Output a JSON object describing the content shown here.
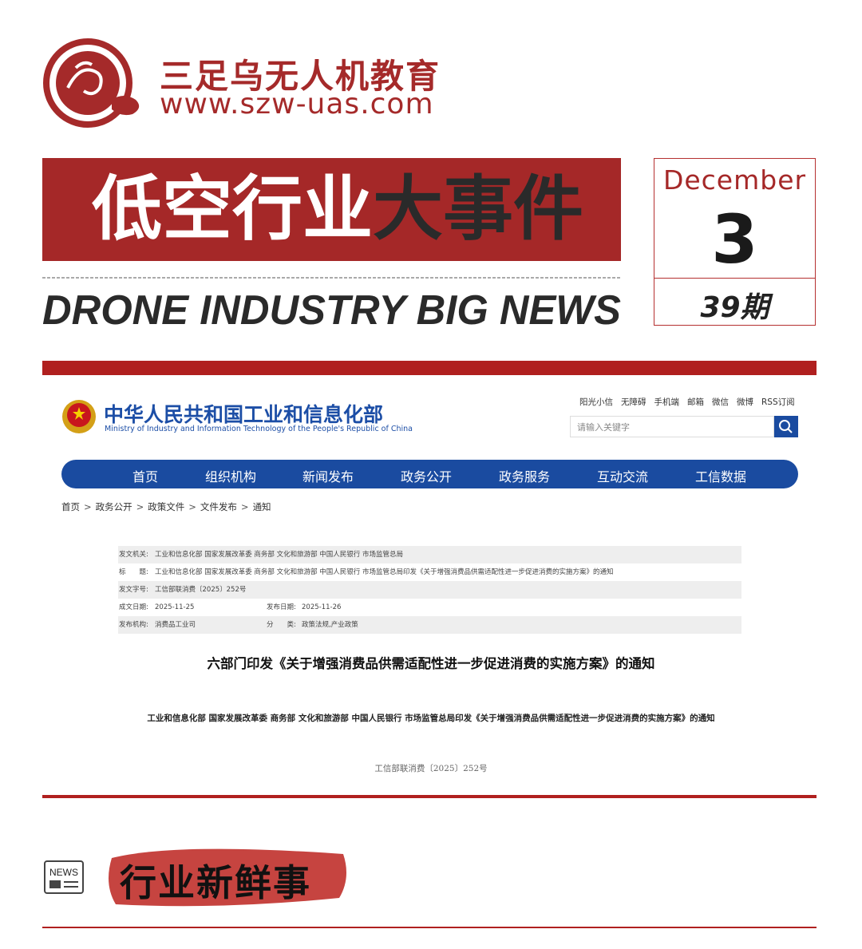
{
  "brand": {
    "name": "三足乌无人机教育",
    "url": "www.szw-uas.com"
  },
  "banner": {
    "title_white": "低空行业",
    "title_dark": "大事件",
    "subtitle": "DRONE INDUSTRY BIG NEWS",
    "month": "December",
    "day": "3",
    "issue": "39期"
  },
  "screenshot": {
    "site_title": "中华人民共和国工业和信息化部",
    "site_subtitle": "Ministry of Industry and Information Technology of the People's Republic of China",
    "top_links": [
      "阳光小信",
      "无障碍",
      "手机端",
      "邮箱",
      "微信",
      "微博",
      "RSS订阅"
    ],
    "search_placeholder": "请输入关键字",
    "nav": [
      "首页",
      "组织机构",
      "新闻发布",
      "政务公开",
      "政务服务",
      "互动交流",
      "工信数据"
    ],
    "breadcrumb_separator": ">",
    "breadcrumb": [
      "首页",
      "政务公开",
      "政策文件",
      "文件发布",
      "通知"
    ],
    "meta": [
      [
        {
          "label": "发文机关:",
          "value": "工业和信息化部 国家发展改革委 商务部 文化和旅游部 中国人民银行 市场监管总局"
        }
      ],
      [
        {
          "label": "标　　题:",
          "value": "工业和信息化部 国家发展改革委 商务部 文化和旅游部 中国人民银行 市场监管总局印发《关于增强消费品供需适配性进一步促进消费的实施方案》的通知"
        }
      ],
      [
        {
          "label": "发文字号:",
          "value": "工信部联消费〔2025〕252号"
        }
      ],
      [
        {
          "label": "成文日期:",
          "value": "2025-11-25"
        },
        {
          "label": "发布日期:",
          "value": "2025-11-26"
        }
      ],
      [
        {
          "label": "发布机构:",
          "value": "消费品工业司"
        },
        {
          "label": "分　　类:",
          "value": "政策法规,产业政策"
        }
      ]
    ],
    "doc_title": "六部门印发《关于增强消费品供需适配性进一步促进消费的实施方案》的通知",
    "body_heading": "工业和信息化部 国家发展改革委 商务部 文化和旅游部 中国人民银行 市场监管总局印发《关于增强消费品供需适配性进一步促进消费的实施方案》的通知",
    "doc_number": "工信部联消费〔2025〕252号"
  },
  "section": {
    "icon_label": "NEWS",
    "title": "行业新鲜事"
  }
}
